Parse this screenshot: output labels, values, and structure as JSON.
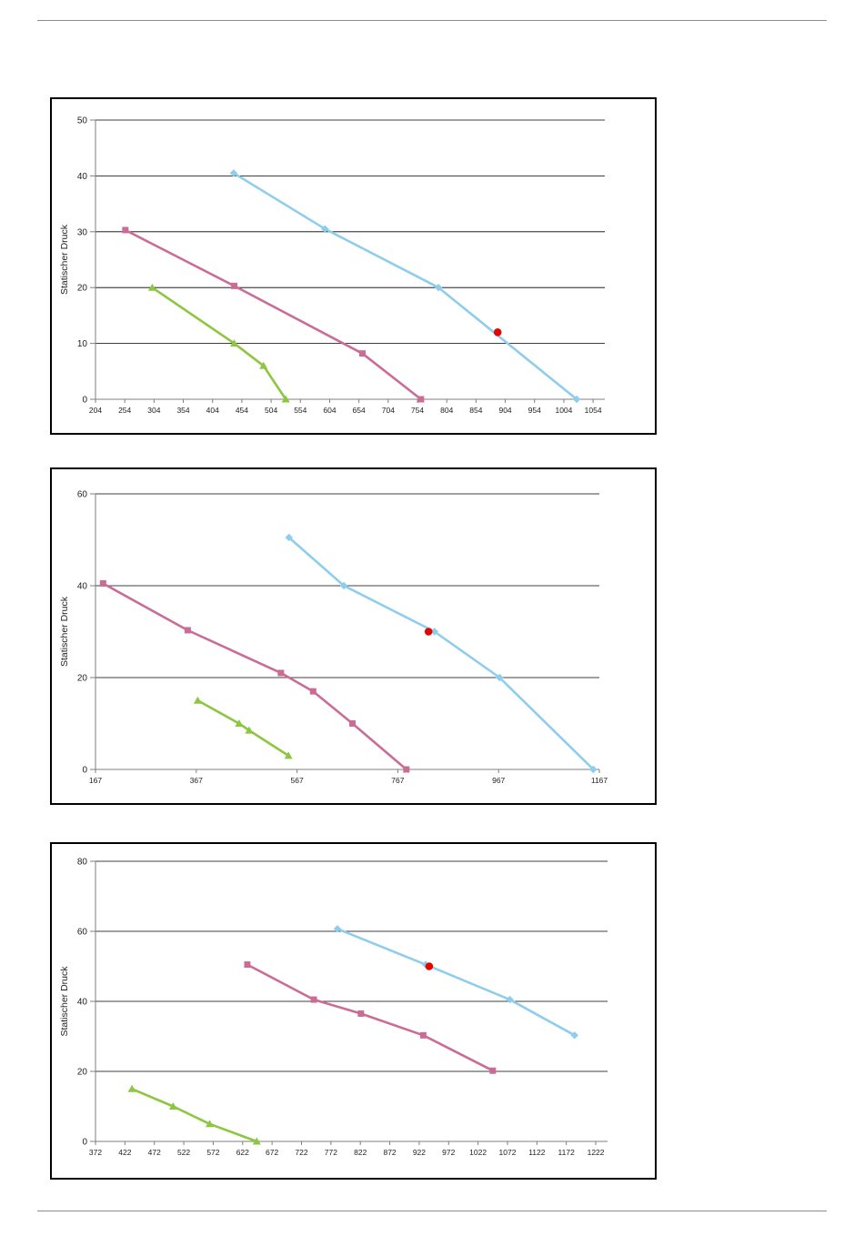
{
  "colors": {
    "blue": "#8ecdec",
    "pink": "#cb6c96",
    "green": "#8dc63f",
    "operating_point": "#e10600",
    "axis": "#7f7f7f",
    "grid": "#000000"
  },
  "chart_data": [
    {
      "type": "line",
      "ylabel": "Statischer  Druck",
      "ylim": [
        0,
        50
      ],
      "yticks": [
        0,
        10,
        20,
        30,
        40,
        50
      ],
      "xlim": [
        204,
        1074
      ],
      "xticks": [
        204,
        254,
        304,
        354,
        404,
        454,
        504,
        554,
        604,
        654,
        704,
        754,
        804,
        854,
        904,
        954,
        1004,
        1054
      ],
      "grid": true,
      "series": [
        {
          "color": "blue",
          "marker": "diamond",
          "points": [
            [
              440,
              40.5
            ],
            [
              596,
              30.5
            ],
            [
              790,
              20
            ],
            [
              1026,
              0
            ]
          ]
        },
        {
          "color": "pink",
          "marker": "square",
          "points": [
            [
              255,
              30.3
            ],
            [
              441,
              20.3
            ],
            [
              660,
              8.2
            ],
            [
              760,
              0
            ]
          ]
        },
        {
          "color": "green",
          "marker": "triangle",
          "points": [
            [
              301,
              20
            ],
            [
              441,
              10
            ],
            [
              491,
              6
            ],
            [
              529,
              0
            ]
          ]
        }
      ],
      "operating_point": {
        "x": 891,
        "y": 12
      }
    },
    {
      "type": "line",
      "ylabel": "Statischer  Druck",
      "ylim": [
        0,
        60
      ],
      "yticks": [
        0,
        20,
        40,
        60
      ],
      "xlim": [
        167,
        1167
      ],
      "xticks": [
        167,
        367,
        567,
        767,
        967,
        1167
      ],
      "grid": true,
      "series": [
        {
          "color": "blue",
          "marker": "diamond",
          "points": [
            [
              551,
              50.5
            ],
            [
              660,
              40
            ],
            [
              840,
              30
            ],
            [
              969,
              20
            ],
            [
              1155,
              0
            ]
          ]
        },
        {
          "color": "pink",
          "marker": "square",
          "points": [
            [
              182,
              40.5
            ],
            [
              350,
              30.3
            ],
            [
              535,
              21
            ],
            [
              599,
              17
            ],
            [
              677,
              10
            ],
            [
              784,
              0
            ]
          ]
        },
        {
          "color": "green",
          "marker": "triangle",
          "points": [
            [
              370,
              15
            ],
            [
              452,
              10
            ],
            [
              472,
              8.5
            ],
            [
              550,
              3
            ]
          ]
        }
      ],
      "operating_point": {
        "x": 828,
        "y": 30
      }
    },
    {
      "type": "line",
      "ylabel": "Statischer  Druck",
      "ylim": [
        0,
        80
      ],
      "yticks": [
        0,
        20,
        40,
        60,
        80
      ],
      "xlim": [
        372,
        1242
      ],
      "xticks": [
        372,
        422,
        472,
        522,
        572,
        622,
        672,
        722,
        772,
        822,
        872,
        922,
        972,
        1022,
        1072,
        1122,
        1172,
        1222
      ],
      "grid": true,
      "series": [
        {
          "color": "blue",
          "marker": "diamond",
          "points": [
            [
              783,
              60.7
            ],
            [
              933,
              50.5
            ],
            [
              1076,
              40.5
            ],
            [
              1186,
              30.3
            ]
          ]
        },
        {
          "color": "pink",
          "marker": "square",
          "points": [
            [
              630,
              50.5
            ],
            [
              743,
              40.5
            ],
            [
              823,
              36.5
            ],
            [
              929,
              30.3
            ],
            [
              1047,
              20.2
            ]
          ]
        },
        {
          "color": "green",
          "marker": "triangle",
          "points": [
            [
              434,
              15
            ],
            [
              504,
              10
            ],
            [
              566,
              5
            ],
            [
              646,
              0
            ]
          ]
        }
      ],
      "operating_point": {
        "x": 939,
        "y": 50
      }
    }
  ]
}
